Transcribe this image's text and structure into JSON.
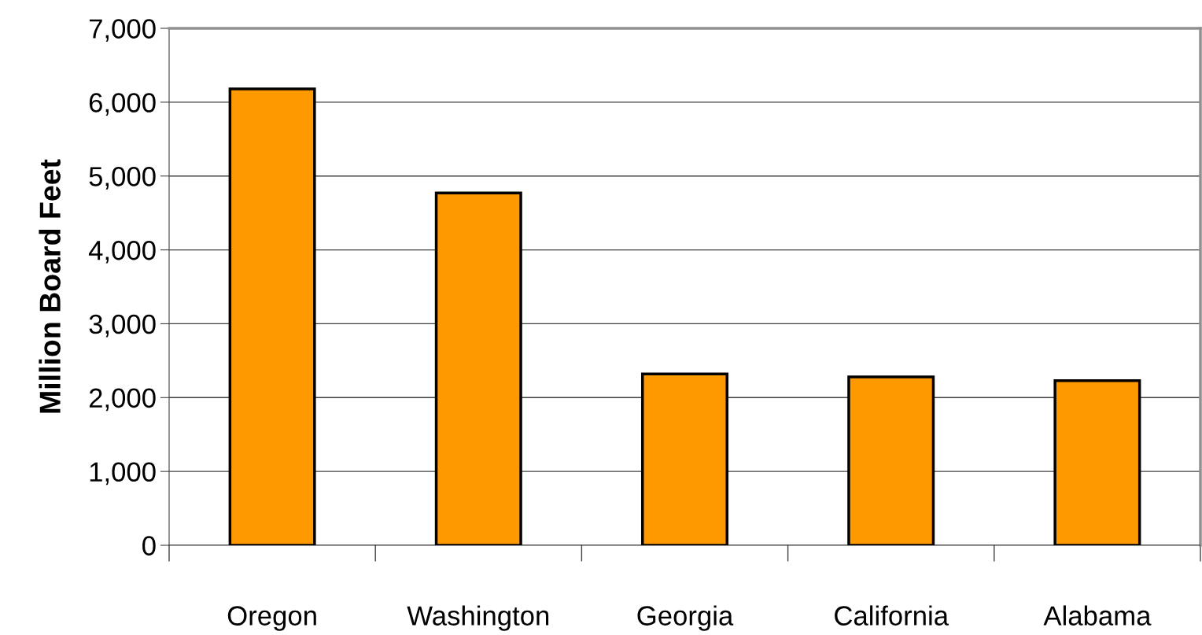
{
  "chart_data": {
    "type": "bar",
    "ylabel": "Million Board Feet",
    "categories": [
      "Oregon",
      "Washington",
      "Georgia",
      "California",
      "Alabama"
    ],
    "values": [
      6180,
      4770,
      2320,
      2280,
      2230
    ],
    "color": "#ff9900",
    "ylim": [
      0,
      7000
    ],
    "yticks": [
      {
        "value": 0,
        "label": "0"
      },
      {
        "value": 1000,
        "label": "1,000"
      },
      {
        "value": 2000,
        "label": "2,000"
      },
      {
        "value": 3000,
        "label": "3,000"
      },
      {
        "value": 4000,
        "label": "4,000"
      },
      {
        "value": 5000,
        "label": "5,000"
      },
      {
        "value": 6000,
        "label": "6,000"
      },
      {
        "value": 7000,
        "label": "7,000"
      }
    ],
    "grid": "y",
    "legend": false
  }
}
